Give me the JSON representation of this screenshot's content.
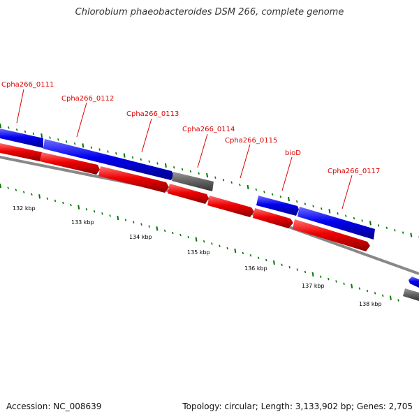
{
  "header": {
    "title": "Chlorobium phaeobacteroides DSM 266, complete genome"
  },
  "footer": {
    "accession": "Accession: NC_008639",
    "summary": "Topology: circular; Length: 3,133,902 bp; Genes: 2,705"
  },
  "genome_map": {
    "colors": {
      "forward_gene": "#0000ee",
      "reverse_gene": "#ee0000",
      "other_feature": "#666666",
      "backbone": "#888888",
      "tick": "#007700",
      "label": "#dd0000"
    },
    "scale_labels": [
      "132 kbp",
      "133 kbp",
      "134 kbp",
      "135 kbp",
      "136 kbp",
      "137 kbp",
      "138 kbp"
    ],
    "gene_labels": [
      "Cpha266_0111",
      "Cpha266_0112",
      "Cpha266_0113",
      "Cpha266_0114",
      "Cpha266_0115",
      "bioD",
      "Cpha266_0117"
    ]
  }
}
